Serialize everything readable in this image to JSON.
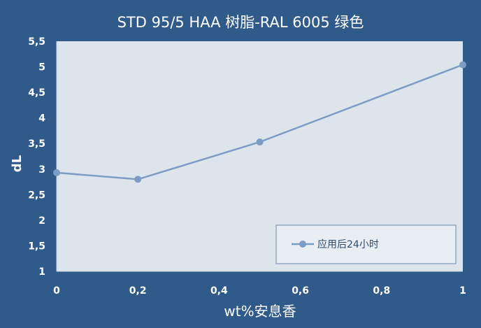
{
  "chart_data": {
    "type": "line",
    "title": "STD 95/5 HAA 树脂-RAL 6005 绿色",
    "xlabel": "wt%安息香",
    "ylabel": "dL",
    "xlim": [
      0,
      1
    ],
    "ylim": [
      1,
      5.5
    ],
    "x_ticks": [
      "0",
      "0,2",
      "0,4",
      "0,6",
      "0,8",
      "1"
    ],
    "y_ticks": [
      "1",
      "1,5",
      "2",
      "2,5",
      "3",
      "3,5",
      "4",
      "4,5",
      "5",
      "5,5"
    ],
    "grid": false,
    "legend_position": "bottom-right",
    "series": [
      {
        "name": "应用后24小时",
        "color": "#7d9cc4",
        "x": [
          0,
          0.2,
          0.5,
          1
        ],
        "y": [
          2.93,
          2.8,
          3.53,
          5.04
        ]
      }
    ]
  }
}
